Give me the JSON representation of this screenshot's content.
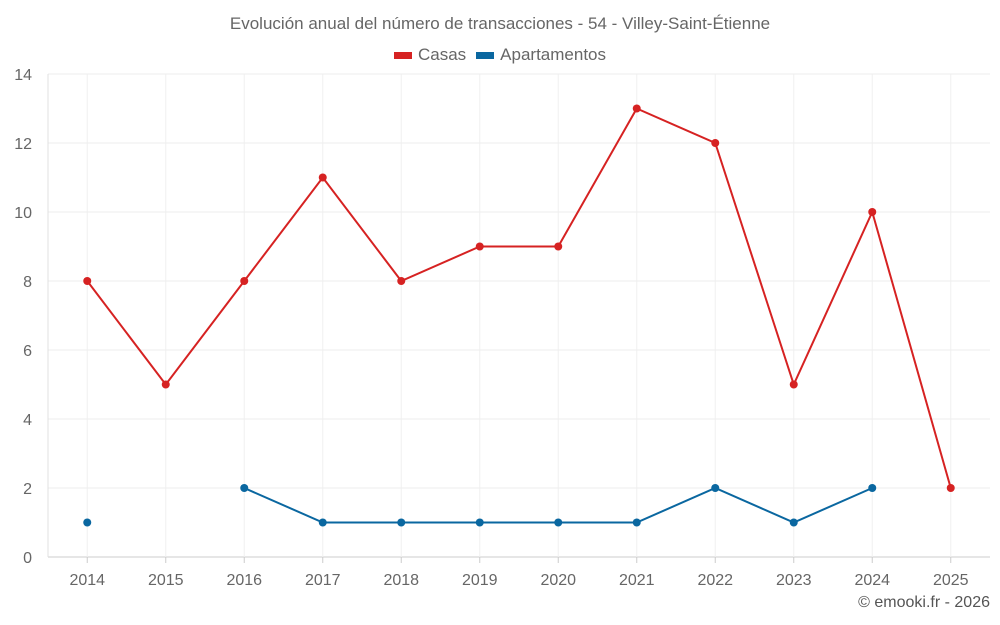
{
  "chart_data": {
    "type": "line",
    "title": "Evolución anual del número de transacciones - 54 - Villey-Saint-Étienne",
    "categories": [
      "2014",
      "2015",
      "2016",
      "2017",
      "2018",
      "2019",
      "2020",
      "2021",
      "2022",
      "2023",
      "2024",
      "2025"
    ],
    "series": [
      {
        "name": "Casas",
        "color": "#d62222",
        "values": [
          8,
          5,
          8,
          11,
          8,
          9,
          9,
          13,
          12,
          5,
          10,
          2
        ]
      },
      {
        "name": "Apartamentos",
        "color": "#0a67a0",
        "values": [
          1,
          null,
          2,
          1,
          1,
          1,
          1,
          1,
          2,
          1,
          2,
          null
        ]
      }
    ],
    "ylim": [
      0,
      14
    ],
    "yticks": [
      0,
      2,
      4,
      6,
      8,
      10,
      12,
      14
    ],
    "grid": true,
    "legend": "top-center",
    "xlabel": "",
    "ylabel": ""
  },
  "credit": "© emooki.fr - 2026"
}
